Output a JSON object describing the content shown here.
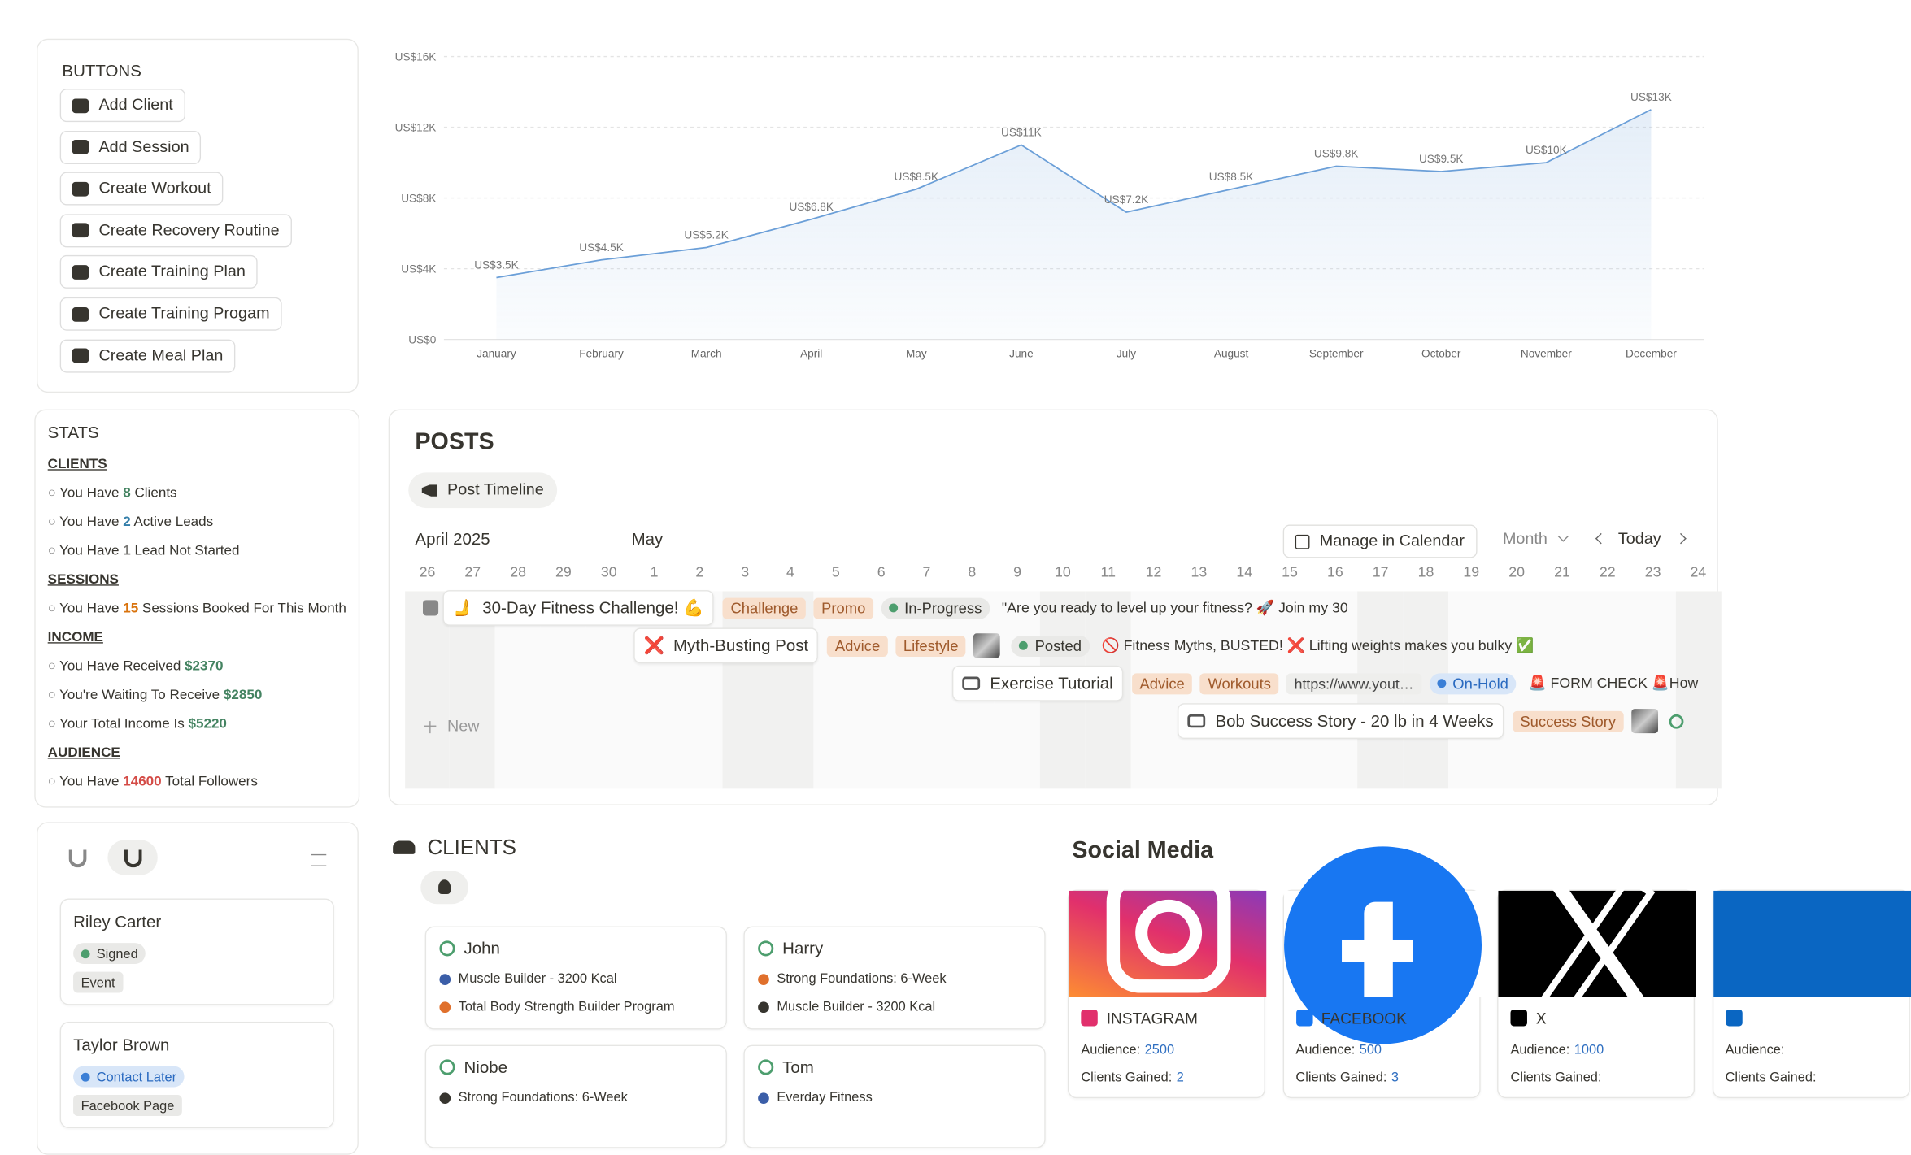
{
  "chart_data": {
    "type": "line",
    "categories": [
      "January",
      "February",
      "March",
      "April",
      "May",
      "June",
      "July",
      "August",
      "September",
      "October",
      "November",
      "December"
    ],
    "values": [
      3500,
      4500,
      5200,
      6800,
      8500,
      11000,
      7200,
      8500,
      9800,
      9500,
      10000,
      13000
    ],
    "value_labels": [
      "US$3.5K",
      "US$4.5K",
      "US$5.2K",
      "US$6.8K",
      "US$8.5K",
      "US$11K",
      "US$7.2K",
      "US$8.5K",
      "US$9.8K",
      "US$9.5K",
      "US$10K",
      "US$13K"
    ],
    "color": "#6b9fd8",
    "ylim": [
      0,
      16000
    ],
    "yticks": [
      {
        "value": 0,
        "label": "US$0"
      },
      {
        "value": 4000,
        "label": "US$4K"
      },
      {
        "value": 8000,
        "label": "US$8K"
      },
      {
        "value": 12000,
        "label": "US$12K"
      },
      {
        "value": 16000,
        "label": "US$16K"
      }
    ],
    "grid": true
  },
  "buttons": {
    "title": "BUTTONS",
    "items": [
      "Add Client",
      "Add Session",
      "Create Workout",
      "Create Recovery Routine",
      "Create Training Plan",
      "Create Training Progam",
      "Create Meal Plan"
    ]
  },
  "stats": {
    "title": "STATS",
    "bullet": "○",
    "sections": [
      {
        "heading": "CLIENTS",
        "lines": [
          {
            "parts": [
              "You Have ",
              "8",
              " Clients"
            ],
            "color": "#448361"
          },
          {
            "parts": [
              "You Have ",
              "2",
              " Active Leads"
            ],
            "color": "#337ea9"
          },
          {
            "parts": [
              "You Have ",
              "1",
              " Lead Not Started"
            ],
            "color": "#787774"
          }
        ]
      },
      {
        "heading": "SESSIONS",
        "lines": [
          {
            "parts": [
              "You Have ",
              "15",
              " Sessions Booked For This Month"
            ],
            "color": "#d9730d"
          }
        ]
      },
      {
        "heading": "INCOME",
        "lines": [
          {
            "parts": [
              "You Have Received ",
              "$2370"
            ],
            "color": "#448361"
          },
          {
            "parts": [
              "You're Waiting To Receive ",
              "$2850"
            ],
            "color": "#448361"
          },
          {
            "parts": [
              "Your Total Income Is ",
              "$5220"
            ],
            "color": "#448361"
          }
        ]
      },
      {
        "heading": "AUDIENCE",
        "lines": [
          {
            "parts": [
              "You Have ",
              "14600",
              " Total Followers"
            ],
            "color": "#d44c47"
          }
        ]
      }
    ]
  },
  "board": {
    "cards": [
      {
        "name": "Riley Carter",
        "status": "Signed",
        "status_tone": "green",
        "tag": "Event"
      },
      {
        "name": "Taylor Brown",
        "status": "Contact Later",
        "status_tone": "blue",
        "tag": "Facebook Page"
      }
    ]
  },
  "posts": {
    "title": "POSTS",
    "view": "Post Timeline",
    "month_start": "April 2025",
    "month_next": "May",
    "manage": "Manage in Calendar",
    "scale": "Month",
    "today": "Today",
    "new": "New",
    "days": [
      26,
      27,
      28,
      29,
      30,
      1,
      2,
      3,
      4,
      5,
      6,
      7,
      8,
      9,
      10,
      11,
      12,
      13,
      14,
      15,
      16,
      17,
      18,
      19,
      20,
      21,
      22,
      23,
      24
    ],
    "items": [
      {
        "icon": "🫸",
        "name": "30-Day Fitness Challenge! 💪",
        "tags": [
          "Challenge",
          "Promo"
        ],
        "status": "In-Progress",
        "status_tone": "green",
        "excerpt": "\"Are you ready to level up your fitness? 🚀 Join my 30"
      },
      {
        "icon": "❌",
        "name": "Myth-Busting Post",
        "tags": [
          "Advice",
          "Lifestyle"
        ],
        "status": "Posted",
        "status_tone": "green",
        "excerpt": "🚫 Fitness Myths, BUSTED! ❌ Lifting weights makes you bulky ✅"
      },
      {
        "name": "Exercise Tutorial",
        "tags": [
          "Advice",
          "Workouts"
        ],
        "link": "https://www.yout…",
        "status": "On-Hold",
        "status_tone": "blue",
        "excerpt": "🚨 FORM CHECK 🚨How"
      },
      {
        "name": "Bob Success Story - 20 lb in 4 Weeks",
        "tags": [
          "Success Story"
        ]
      }
    ]
  },
  "clients": {
    "title": "CLIENTS",
    "cards": [
      {
        "name": "John",
        "lines": [
          "Muscle Builder - 3200 Kcal",
          "Total Body Strength Builder Program"
        ]
      },
      {
        "name": "Harry",
        "lines": [
          "Strong Foundations: 6-Week",
          "Muscle Builder - 3200 Kcal"
        ]
      },
      {
        "name": "Niobe",
        "lines": [
          "Strong Foundations: 6-Week"
        ]
      },
      {
        "name": "Tom",
        "lines": [
          "Everday Fitness"
        ]
      }
    ]
  },
  "social": {
    "title": "Social Media",
    "audience_label": "Audience:",
    "gained_label": "Clients Gained:",
    "cards": [
      {
        "name": "INSTAGRAM",
        "audience": "2500",
        "gained": "2"
      },
      {
        "name": "FACEBOOK",
        "audience": "500",
        "gained": "3"
      },
      {
        "name": "X",
        "audience": "1000"
      }
    ]
  }
}
